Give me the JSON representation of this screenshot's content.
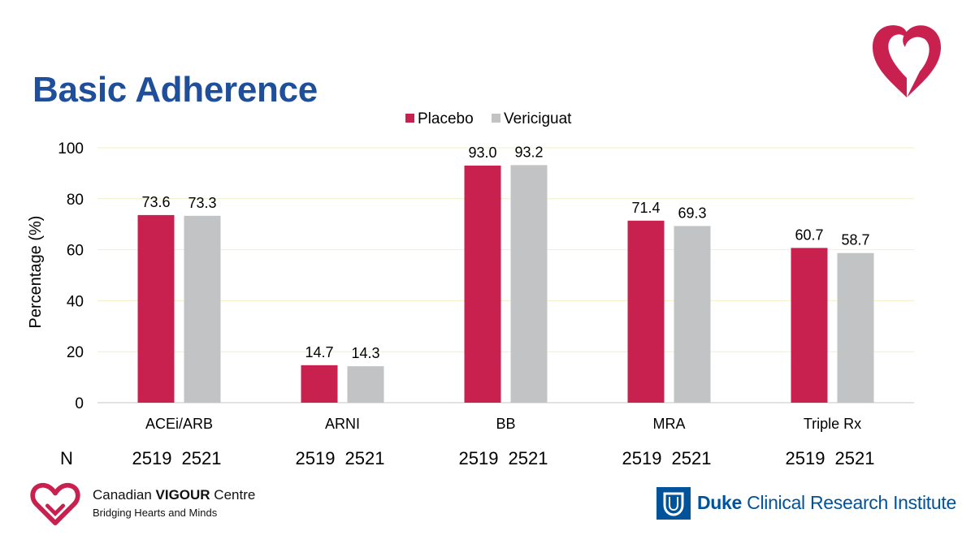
{
  "slide": {
    "title": "Basic Adherence"
  },
  "chart_data": {
    "type": "bar",
    "title": "",
    "ylabel": "Percentage (%)",
    "xlabel": "",
    "ylim": [
      0,
      100
    ],
    "yticks": [
      0,
      20,
      40,
      60,
      80,
      100
    ],
    "grid": true,
    "legend_position": "top-center",
    "categories": [
      "ACEi/ARB",
      "ARNI",
      "BB",
      "MRA",
      "Triple Rx"
    ],
    "series": [
      {
        "name": "Placebo",
        "color": "#c8204f",
        "values": [
          73.6,
          14.7,
          93.0,
          71.4,
          60.7
        ],
        "labels": [
          "73.6",
          "14.7",
          "93.0",
          "71.4",
          "60.7"
        ]
      },
      {
        "name": "Vericiguat",
        "color": "#c2c3c5",
        "values": [
          73.3,
          14.3,
          93.2,
          69.3,
          58.7
        ],
        "labels": [
          "73.3",
          "14.3",
          "93.2",
          "69.3",
          "58.7"
        ]
      }
    ]
  },
  "n_row": {
    "label": "N",
    "groups": [
      [
        "2519",
        "2521"
      ],
      [
        "2519",
        "2521"
      ],
      [
        "2519",
        "2521"
      ],
      [
        "2519",
        "2521"
      ],
      [
        "2519",
        "2521"
      ]
    ]
  },
  "logos": {
    "cvc_name_regular": "Canadian ",
    "cvc_name_bold": "VIGOUR",
    "cvc_name_tail": " Centre",
    "cvc_tagline": "Bridging Hearts and Minds",
    "cvc_heart_color": "#c8204f",
    "duke_bold": "Duke",
    "duke_rest": " Clinical Research Institute",
    "duke_color": "#00539b"
  }
}
